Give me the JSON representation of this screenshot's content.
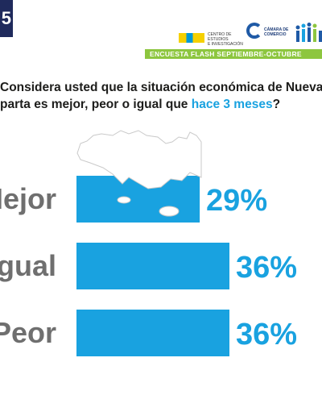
{
  "badge": "5",
  "logos": {
    "cei_text": "CENTRO DE ESTUDIOS\nE INVESTIGACIÓN",
    "camara_text": "CÁMARA DE\nCOMERCIO"
  },
  "banner": "ENCUESTA FLASH SEPTIEMBRE-OCTUBRE",
  "question": {
    "line1": "Considera usted que la situación económica de Nueva",
    "line2_start": "parta es mejor, peor o igual que ",
    "line2_highlight": "hace 3 meses",
    "line2_end": "?"
  },
  "chart_data": {
    "type": "bar",
    "orientation": "horizontal",
    "categories": [
      "Mejor",
      "Igual",
      "Peor"
    ],
    "values": [
      29,
      36,
      36
    ],
    "value_labels": [
      "29%",
      "36%",
      "36%"
    ],
    "max": 36,
    "bar_color": "#19a2e0",
    "label_color": "#6f6f6f",
    "value_color": "#19a2e0"
  }
}
